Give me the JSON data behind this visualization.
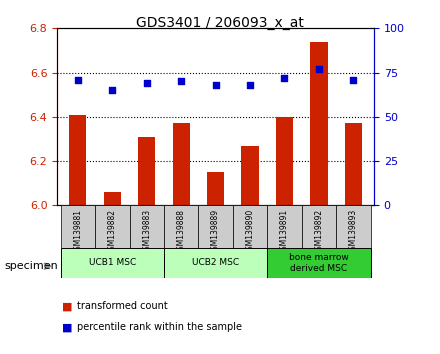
{
  "title": "GDS3401 / 206093_x_at",
  "samples": [
    "GSM139881",
    "GSM139882",
    "GSM139883",
    "GSM139888",
    "GSM139889",
    "GSM139890",
    "GSM139891",
    "GSM139892",
    "GSM139893"
  ],
  "bar_values": [
    6.41,
    6.06,
    6.31,
    6.37,
    6.15,
    6.27,
    6.4,
    6.74,
    6.37
  ],
  "dot_values": [
    71,
    65,
    69,
    70,
    68,
    68,
    72,
    77,
    71
  ],
  "ylim_left": [
    6.0,
    6.8
  ],
  "ylim_right": [
    0,
    100
  ],
  "yticks_left": [
    6.0,
    6.2,
    6.4,
    6.6,
    6.8
  ],
  "yticks_right": [
    0,
    25,
    50,
    75,
    100
  ],
  "bar_color": "#cc2200",
  "dot_color": "#0000cc",
  "group_defs": [
    [
      0,
      2,
      "UCB1 MSC",
      "#bbffbb"
    ],
    [
      3,
      5,
      "UCB2 MSC",
      "#bbffbb"
    ],
    [
      6,
      8,
      "bone marrow\nderived MSC",
      "#33cc33"
    ]
  ],
  "legend_bar_label": "transformed count",
  "legend_dot_label": "percentile rank within the sample",
  "specimen_label": "specimen",
  "bar_width": 0.5,
  "tick_label_area_color": "#cccccc",
  "grid_yticks": [
    6.2,
    6.4,
    6.6
  ]
}
